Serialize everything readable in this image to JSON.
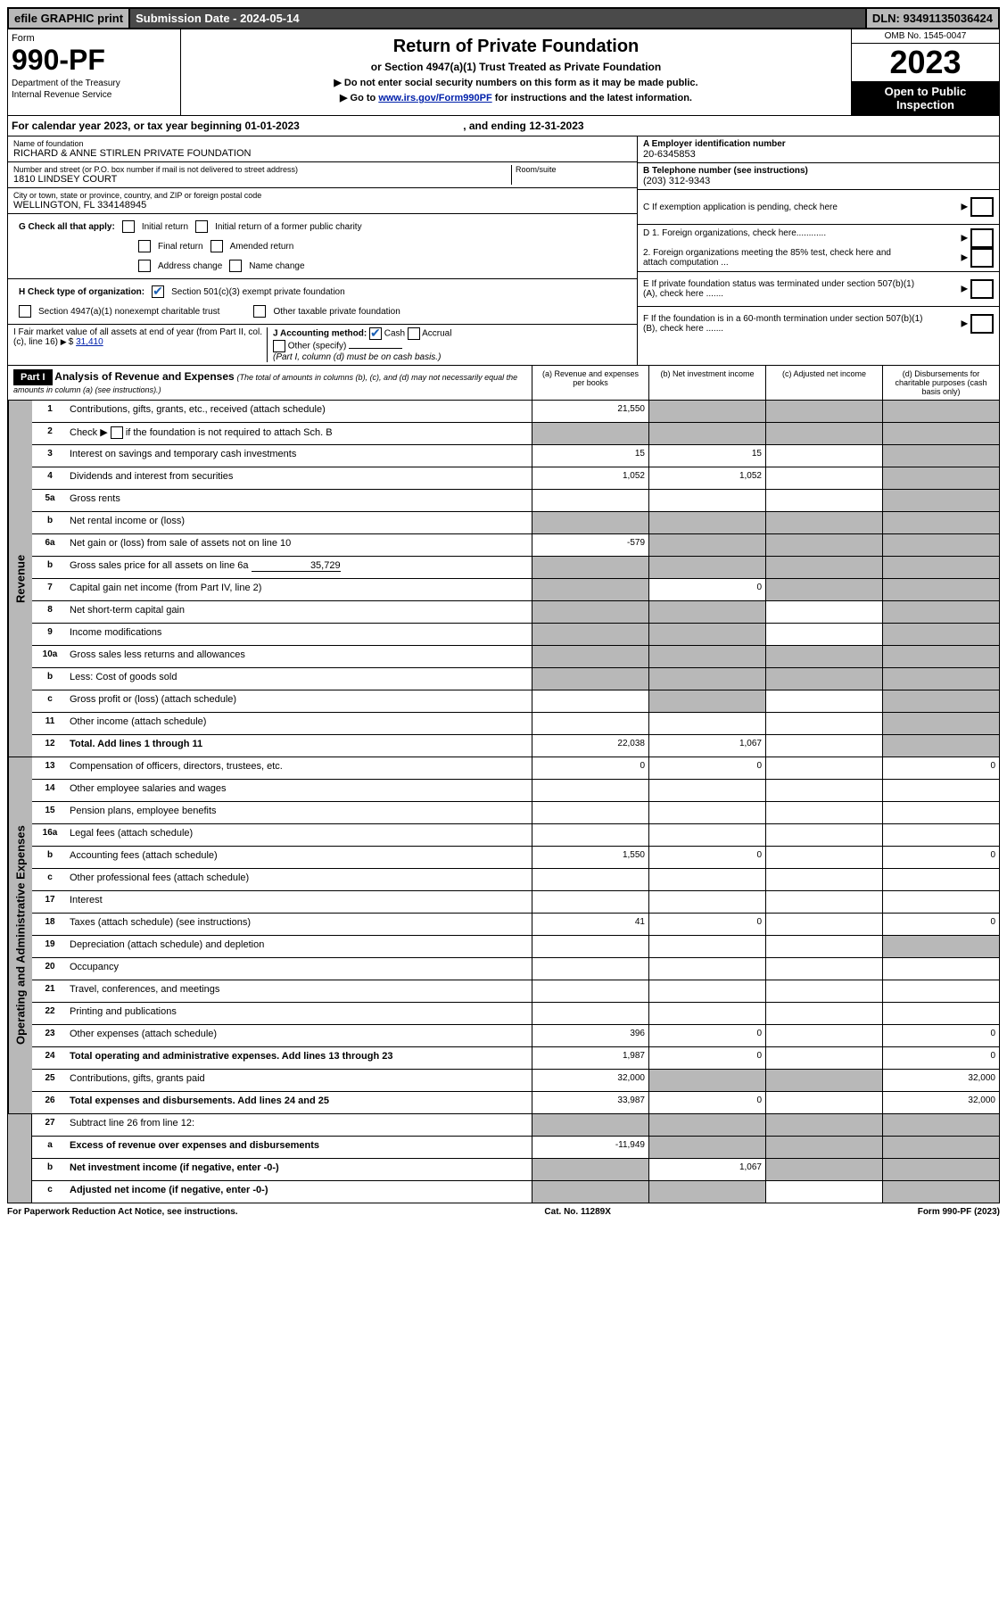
{
  "topbar": {
    "efile": "efile GRAPHIC print",
    "submission": "Submission Date - 2024-05-14",
    "dln": "DLN: 93491135036424"
  },
  "header": {
    "form_label": "Form",
    "form_no": "990-PF",
    "dept": "Department of the Treasury",
    "irs": "Internal Revenue Service",
    "title": "Return of Private Foundation",
    "subtitle": "or Section 4947(a)(1) Trust Treated as Private Foundation",
    "note1": "▶ Do not enter social security numbers on this form as it may be made public.",
    "note2_prefix": "▶ Go to ",
    "note2_link": "www.irs.gov/Form990PF",
    "note2_suffix": " for instructions and the latest information.",
    "omb": "OMB No. 1545-0047",
    "year": "2023",
    "open": "Open to Public Inspection"
  },
  "calendar": {
    "text_prefix": "For calendar year 2023, or tax year beginning ",
    "begin": "01-01-2023",
    "mid": " , and ending ",
    "end": "12-31-2023"
  },
  "foundation": {
    "name_lbl": "Name of foundation",
    "name": "RICHARD & ANNE STIRLEN PRIVATE FOUNDATION",
    "addr_lbl": "Number and street (or P.O. box number if mail is not delivered to street address)",
    "addr": "1810 LINDSEY COURT",
    "room_lbl": "Room/suite",
    "city_lbl": "City or town, state or province, country, and ZIP or foreign postal code",
    "city": "WELLINGTON, FL 334148945"
  },
  "right_info": {
    "a_lbl": "A Employer identification number",
    "a_val": "20-6345853",
    "b_lbl": "B Telephone number (see instructions)",
    "b_val": "(203) 312-9343",
    "c_lbl": "C If exemption application is pending, check here",
    "d1_lbl": "D 1. Foreign organizations, check here............",
    "d2_lbl": "2. Foreign organizations meeting the 85% test, check here and attach computation ...",
    "e_lbl": "E If private foundation status was terminated under section 507(b)(1)(A), check here .......",
    "f_lbl": "F If the foundation is in a 60-month termination under section 507(b)(1)(B), check here .......",
    "g_lbl": "G Check all that apply:",
    "g_opts": [
      "Initial return",
      "Initial return of a former public charity",
      "Final return",
      "Amended return",
      "Address change",
      "Name change"
    ],
    "h_lbl": "H Check type of organization:",
    "h_opt1": "Section 501(c)(3) exempt private foundation",
    "h_opt2": "Section 4947(a)(1) nonexempt charitable trust",
    "h_opt3": "Other taxable private foundation",
    "i_lbl": "I Fair market value of all assets at end of year (from Part II, col. (c), line 16)",
    "i_val": "31,410",
    "j_lbl": "J Accounting method:",
    "j_cash": "Cash",
    "j_accrual": "Accrual",
    "j_other": "Other (specify)",
    "j_note": "(Part I, column (d) must be on cash basis.)"
  },
  "part1": {
    "label": "Part I",
    "title": "Analysis of Revenue and Expenses",
    "title_note": "(The total of amounts in columns (b), (c), and (d) may not necessarily equal the amounts in column (a) (see instructions).)",
    "col_a": "(a) Revenue and expenses per books",
    "col_b": "(b) Net investment income",
    "col_c": "(c) Adjusted net income",
    "col_d": "(d) Disbursements for charitable purposes (cash basis only)"
  },
  "revenue_label": "Revenue",
  "expense_label": "Operating and Administrative Expenses",
  "rows": {
    "r1": {
      "no": "1",
      "desc": "Contributions, gifts, grants, etc., received (attach schedule)",
      "a": "21,550",
      "shade": [
        "b",
        "c",
        "d"
      ]
    },
    "r2": {
      "no": "2",
      "desc_prefix": "Check ▶ ",
      "desc_suffix": " if the foundation is not required to attach Sch. B",
      "shade": [
        "a",
        "b",
        "c",
        "d"
      ]
    },
    "r3": {
      "no": "3",
      "desc": "Interest on savings and temporary cash investments",
      "a": "15",
      "b": "15",
      "shade": [
        "d"
      ]
    },
    "r4": {
      "no": "4",
      "desc": "Dividends and interest from securities",
      "a": "1,052",
      "b": "1,052",
      "shade": [
        "d"
      ]
    },
    "r5a": {
      "no": "5a",
      "desc": "Gross rents",
      "shade": [
        "d"
      ]
    },
    "r5b": {
      "no": "b",
      "desc": "Net rental income or (loss)",
      "shade": [
        "a",
        "b",
        "c",
        "d"
      ]
    },
    "r6a": {
      "no": "6a",
      "desc": "Net gain or (loss) from sale of assets not on line 10",
      "a": "-579",
      "shade": [
        "b",
        "c",
        "d"
      ]
    },
    "r6b": {
      "no": "b",
      "desc_prefix": "Gross sales price for all assets on line 6a ",
      "val": "35,729",
      "shade": [
        "a",
        "b",
        "c",
        "d"
      ]
    },
    "r7": {
      "no": "7",
      "desc": "Capital gain net income (from Part IV, line 2)",
      "b": "0",
      "shade": [
        "a",
        "c",
        "d"
      ]
    },
    "r8": {
      "no": "8",
      "desc": "Net short-term capital gain",
      "shade": [
        "a",
        "b",
        "d"
      ]
    },
    "r9": {
      "no": "9",
      "desc": "Income modifications",
      "shade": [
        "a",
        "b",
        "d"
      ]
    },
    "r10a": {
      "no": "10a",
      "desc": "Gross sales less returns and allowances",
      "shade": [
        "a",
        "b",
        "c",
        "d"
      ]
    },
    "r10b": {
      "no": "b",
      "desc": "Less: Cost of goods sold",
      "shade": [
        "a",
        "b",
        "c",
        "d"
      ]
    },
    "r10c": {
      "no": "c",
      "desc": "Gross profit or (loss) (attach schedule)",
      "shade": [
        "b",
        "d"
      ]
    },
    "r11": {
      "no": "11",
      "desc": "Other income (attach schedule)",
      "shade": [
        "d"
      ]
    },
    "r12": {
      "no": "12",
      "desc": "Total. Add lines 1 through 11",
      "a": "22,038",
      "b": "1,067",
      "shade": [
        "d"
      ],
      "bold": true
    },
    "r13": {
      "no": "13",
      "desc": "Compensation of officers, directors, trustees, etc.",
      "a": "0",
      "b": "0",
      "d": "0"
    },
    "r14": {
      "no": "14",
      "desc": "Other employee salaries and wages"
    },
    "r15": {
      "no": "15",
      "desc": "Pension plans, employee benefits"
    },
    "r16a": {
      "no": "16a",
      "desc": "Legal fees (attach schedule)"
    },
    "r16b": {
      "no": "b",
      "desc": "Accounting fees (attach schedule)",
      "a": "1,550",
      "b": "0",
      "d": "0"
    },
    "r16c": {
      "no": "c",
      "desc": "Other professional fees (attach schedule)"
    },
    "r17": {
      "no": "17",
      "desc": "Interest"
    },
    "r18": {
      "no": "18",
      "desc": "Taxes (attach schedule) (see instructions)",
      "a": "41",
      "b": "0",
      "d": "0"
    },
    "r19": {
      "no": "19",
      "desc": "Depreciation (attach schedule) and depletion",
      "shade": [
        "d"
      ]
    },
    "r20": {
      "no": "20",
      "desc": "Occupancy"
    },
    "r21": {
      "no": "21",
      "desc": "Travel, conferences, and meetings"
    },
    "r22": {
      "no": "22",
      "desc": "Printing and publications"
    },
    "r23": {
      "no": "23",
      "desc": "Other expenses (attach schedule)",
      "a": "396",
      "b": "0",
      "d": "0"
    },
    "r24": {
      "no": "24",
      "desc": "Total operating and administrative expenses. Add lines 13 through 23",
      "a": "1,987",
      "b": "0",
      "d": "0",
      "bold": true
    },
    "r25": {
      "no": "25",
      "desc": "Contributions, gifts, grants paid",
      "a": "32,000",
      "d": "32,000",
      "shade": [
        "b",
        "c"
      ]
    },
    "r26": {
      "no": "26",
      "desc": "Total expenses and disbursements. Add lines 24 and 25",
      "a": "33,987",
      "b": "0",
      "d": "32,000",
      "bold": true
    },
    "r27": {
      "no": "27",
      "desc": "Subtract line 26 from line 12:",
      "shade": [
        "a",
        "b",
        "c",
        "d"
      ]
    },
    "r27a": {
      "no": "a",
      "desc": "Excess of revenue over expenses and disbursements",
      "a": "-11,949",
      "shade": [
        "b",
        "c",
        "d"
      ],
      "bold": true
    },
    "r27b": {
      "no": "b",
      "desc": "Net investment income (if negative, enter -0-)",
      "b": "1,067",
      "shade": [
        "a",
        "c",
        "d"
      ],
      "bold": true
    },
    "r27c": {
      "no": "c",
      "desc": "Adjusted net income (if negative, enter -0-)",
      "shade": [
        "a",
        "b",
        "d"
      ],
      "bold": true
    }
  },
  "footer": {
    "left": "For Paperwork Reduction Act Notice, see instructions.",
    "center": "Cat. No. 11289X",
    "right": "Form 990-PF (2023)"
  }
}
